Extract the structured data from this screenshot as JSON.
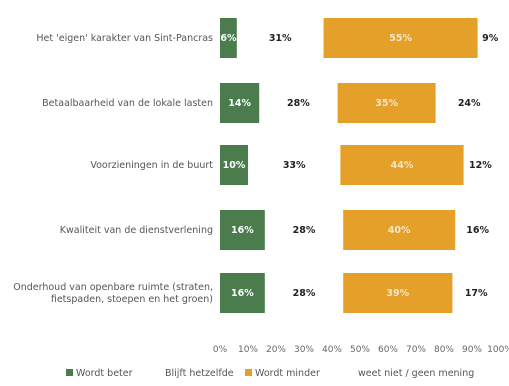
{
  "chart_data": {
    "type": "bar",
    "categories": [
      "Het 'eigen' karakter van Sint-Pancras",
      "Betaalbaarheid van de lokale lasten",
      "Voorzieningen in de buurt",
      "Kwaliteit van de dienstverlening",
      "Onderhoud van openbare ruimte (straten, fietspaden, stoepen en het groen)"
    ],
    "series": [
      {
        "name": "Wordt beter",
        "values": [
          6,
          14,
          10,
          16,
          16
        ],
        "color": "#4a7c4e"
      },
      {
        "name": "Blijft hetzelfde",
        "values": [
          31,
          28,
          33,
          28,
          28
        ],
        "color": "#ffffff"
      },
      {
        "name": "Wordt minder",
        "values": [
          55,
          35,
          44,
          40,
          39
        ],
        "color": "#e5a02a"
      },
      {
        "name": "weet niet / geen mening",
        "values": [
          9,
          24,
          12,
          16,
          17
        ],
        "color": "#ffffff"
      }
    ],
    "x_ticks": [
      "0%",
      "10%",
      "20%",
      "30%",
      "40%",
      "50%",
      "60%",
      "70%",
      "80%",
      "90%",
      "100%"
    ],
    "xlim": [
      0,
      100
    ],
    "grid": false,
    "legend_position": "bottom"
  }
}
